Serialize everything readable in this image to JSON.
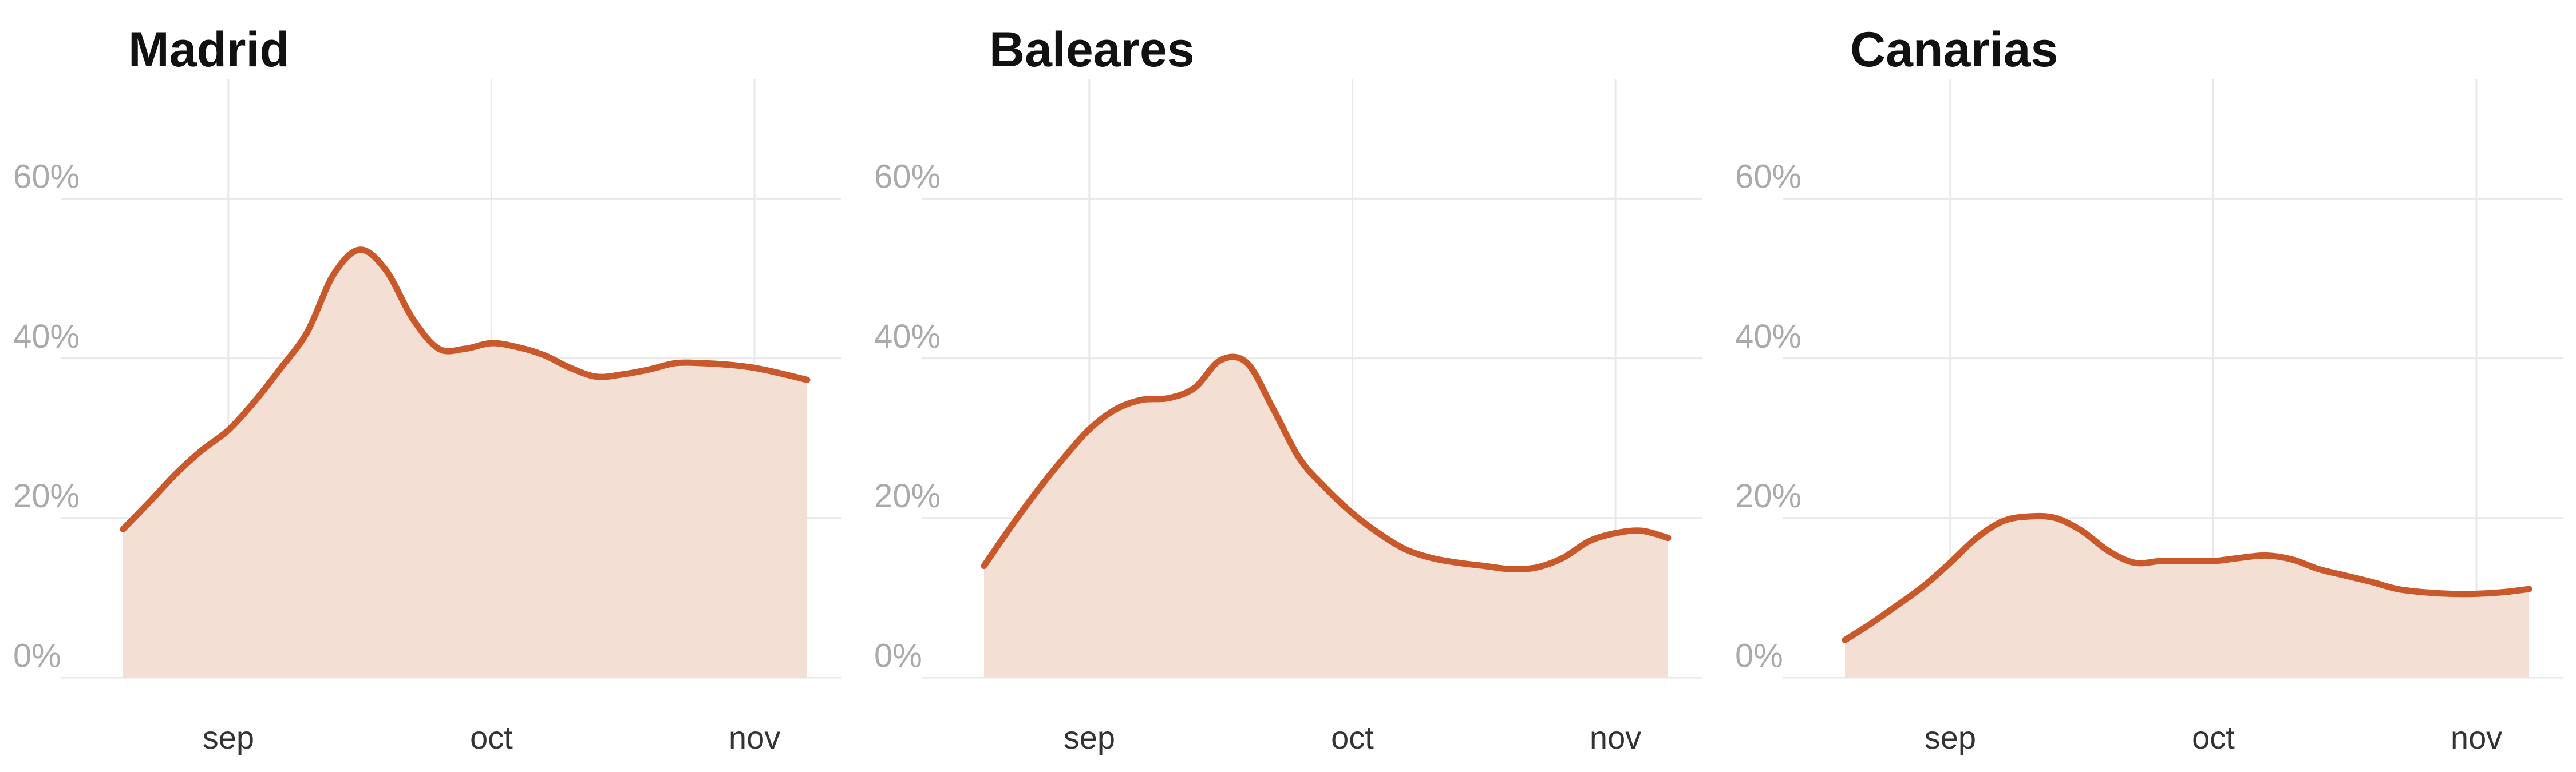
{
  "chart_data": [
    {
      "type": "area",
      "title": "Madrid",
      "color": "#c9592b",
      "fill": "#f3dfd4",
      "grid": true,
      "categories": [
        null,
        null,
        null,
        null,
        "sep",
        null,
        null,
        null,
        null,
        null,
        null,
        null,
        null,
        null,
        "oct",
        null,
        null,
        null,
        null,
        null,
        null,
        null,
        null,
        null,
        "nov",
        null,
        null
      ],
      "values": [
        18.6,
        22,
        25.5,
        28.5,
        31,
        34.6,
        38.8,
        43.3,
        50.5,
        53.6,
        51,
        45,
        41.2,
        41.2,
        41.9,
        41.4,
        40.4,
        38.8,
        37.7,
        38,
        38.6,
        39.4,
        39.4,
        39.2,
        38.8,
        38.1,
        37.3
      ],
      "ylim": [
        0,
        75
      ],
      "yticks": [
        {
          "value": 0,
          "label": "0%"
        },
        {
          "value": 20,
          "label": "20%"
        },
        {
          "value": 40,
          "label": "40%"
        },
        {
          "value": 60,
          "label": "60%"
        }
      ]
    },
    {
      "type": "area",
      "title": "Baleares",
      "color": "#c9592b",
      "fill": "#f3dfd4",
      "grid": true,
      "categories": [
        null,
        null,
        null,
        null,
        "sep",
        null,
        null,
        null,
        null,
        null,
        null,
        null,
        null,
        null,
        "oct",
        null,
        null,
        null,
        null,
        null,
        null,
        null,
        null,
        null,
        "nov",
        null,
        null
      ],
      "values": [
        14,
        18.8,
        23.3,
        27.4,
        31.1,
        33.6,
        34.8,
        35,
        36.3,
        39.8,
        39.4,
        33.6,
        27.4,
        23.7,
        20.6,
        18.1,
        16.1,
        15,
        14.4,
        14,
        13.6,
        13.8,
        15,
        17.1,
        18.1,
        18.4,
        17.5
      ],
      "ylim": [
        0,
        75
      ],
      "yticks": [
        {
          "value": 0,
          "label": "0%"
        },
        {
          "value": 20,
          "label": "20%"
        },
        {
          "value": 40,
          "label": "40%"
        },
        {
          "value": 60,
          "label": "60%"
        }
      ]
    },
    {
      "type": "area",
      "title": "Canarias",
      "color": "#c9592b",
      "fill": "#f3dfd4",
      "grid": true,
      "categories": [
        null,
        null,
        null,
        null,
        "sep",
        null,
        null,
        null,
        null,
        null,
        null,
        null,
        null,
        null,
        "oct",
        null,
        null,
        null,
        null,
        null,
        null,
        null,
        null,
        null,
        "nov",
        null,
        null
      ],
      "values": [
        4.7,
        6.8,
        9.1,
        11.5,
        14.4,
        17.5,
        19.6,
        20.2,
        20,
        18.4,
        15.9,
        14.4,
        14.6,
        14.6,
        14.6,
        15,
        15.3,
        14.8,
        13.6,
        12.8,
        12,
        11.1,
        10.7,
        10.5,
        10.5,
        10.7,
        11.1
      ],
      "ylim": [
        0,
        75
      ],
      "yticks": [
        {
          "value": 0,
          "label": "0%"
        },
        {
          "value": 20,
          "label": "20%"
        },
        {
          "value": 40,
          "label": "40%"
        },
        {
          "value": 60,
          "label": "60%"
        }
      ]
    }
  ]
}
